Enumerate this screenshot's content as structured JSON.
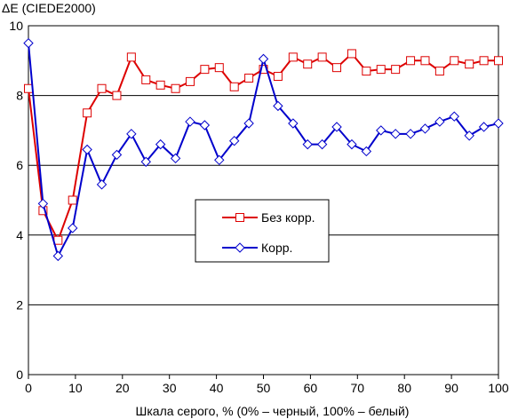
{
  "chart_data": {
    "type": "line",
    "title": "ΔE (CIEDE2000)",
    "xlabel": "Шкала серого, % (0% – черный, 100% – белый)",
    "ylabel": "",
    "xlim": [
      0,
      100
    ],
    "ylim": [
      0,
      10
    ],
    "x_ticks": [
      0,
      10,
      20,
      30,
      40,
      50,
      60,
      70,
      80,
      90,
      100
    ],
    "y_ticks": [
      0,
      2,
      4,
      6,
      8,
      10
    ],
    "grid": "horizontal",
    "legend_position": "center",
    "x": [
      0,
      3.1,
      6.3,
      9.4,
      12.5,
      15.6,
      18.8,
      21.9,
      25,
      28.1,
      31.3,
      34.4,
      37.5,
      40.6,
      43.8,
      46.9,
      50,
      53.1,
      56.3,
      59.4,
      62.5,
      65.6,
      68.8,
      71.9,
      75,
      78.1,
      81.3,
      84.4,
      87.5,
      90.6,
      93.8,
      96.9,
      100
    ],
    "series": [
      {
        "name": "Без корр.",
        "color": "#dd0000",
        "marker": "square",
        "values": [
          8.2,
          4.7,
          3.85,
          5.0,
          7.5,
          8.2,
          8.0,
          9.1,
          8.45,
          8.3,
          8.2,
          8.4,
          8.75,
          8.8,
          8.25,
          8.5,
          8.75,
          8.55,
          9.1,
          8.9,
          9.1,
          8.8,
          9.2,
          8.7,
          8.75,
          8.75,
          9.0,
          9.0,
          8.7,
          9.0,
          8.9,
          9.0,
          9.0
        ]
      },
      {
        "name": "Корр.",
        "color": "#0000cc",
        "marker": "diamond",
        "values": [
          9.5,
          4.9,
          3.4,
          4.2,
          6.45,
          5.45,
          6.3,
          6.9,
          6.1,
          6.6,
          6.2,
          7.25,
          7.15,
          6.15,
          6.7,
          7.2,
          9.05,
          7.7,
          7.2,
          6.6,
          6.6,
          7.1,
          6.6,
          6.4,
          7.0,
          6.9,
          6.9,
          7.05,
          7.25,
          7.4,
          6.85,
          7.1,
          7.2
        ]
      }
    ]
  }
}
